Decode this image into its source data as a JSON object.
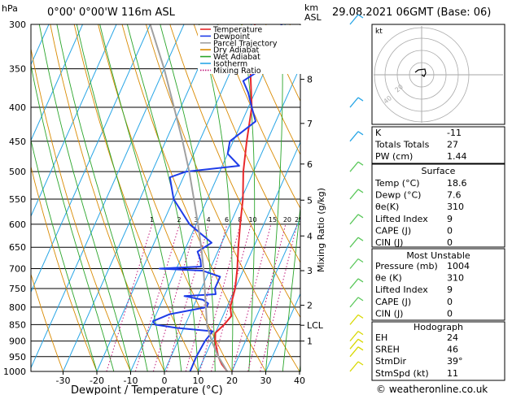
{
  "header": {
    "hpa_unit": "hPa",
    "location": "0°00' 0°00'W 116m ASL",
    "km_unit": "km",
    "asl_unit": "ASL",
    "datetime": "29.08.2021 06GMT (Base: 06)"
  },
  "legend": [
    {
      "label": "Temperature",
      "color": "#e8282b",
      "style": "solid"
    },
    {
      "label": "Dewpoint",
      "color": "#1f3de8",
      "style": "solid"
    },
    {
      "label": "Parcel Trajectory",
      "color": "#a0a0a0",
      "style": "solid"
    },
    {
      "label": "Dry Adiabat",
      "color": "#d98a00",
      "style": "solid"
    },
    {
      "label": "Wet Adiabat",
      "color": "#2aa52a",
      "style": "solid"
    },
    {
      "label": "Isotherm",
      "color": "#29a6e6",
      "style": "solid"
    },
    {
      "label": "Mixing Ratio",
      "color": "#c0187a",
      "style": "dotted"
    }
  ],
  "chart_data": {
    "type": "line",
    "xlabel": "Dewpoint / Temperature (°C)",
    "ylabel": "hPa",
    "y_scale": "log",
    "xlim": [
      -35,
      40
    ],
    "ylim": [
      1000,
      300
    ],
    "x_ticks": [
      -30,
      -20,
      -10,
      0,
      10,
      20,
      30,
      40
    ],
    "pressure_levels": [
      300,
      350,
      400,
      450,
      500,
      550,
      600,
      650,
      700,
      750,
      800,
      850,
      900,
      950,
      1000
    ],
    "altitude_km": {
      "label": "km ASL",
      "ticks": [
        {
          "km": "8",
          "p": 363
        },
        {
          "km": "7",
          "p": 423
        },
        {
          "km": "6",
          "p": 487
        },
        {
          "km": "5",
          "p": 552
        },
        {
          "km": "4",
          "p": 625
        },
        {
          "km": "3",
          "p": 705
        },
        {
          "km": "2",
          "p": 795
        },
        {
          "km": "LCL",
          "p": 852
        },
        {
          "km": "1",
          "p": 900
        }
      ]
    },
    "mixing_ratio_label": "Mixing Ratio (g/kg)",
    "mixing_ratio_values": [
      "1",
      "2",
      "3",
      "4",
      "6",
      "8",
      "10",
      "15",
      "20",
      "25"
    ],
    "series": [
      {
        "name": "Temperature",
        "color": "#e8282b",
        "points": [
          [
            1000,
            18.6
          ],
          [
            975,
            16
          ],
          [
            950,
            14
          ],
          [
            925,
            12.5
          ],
          [
            900,
            11
          ],
          [
            875,
            10
          ],
          [
            850,
            11.5
          ],
          [
            825,
            12.5
          ],
          [
            800,
            11
          ],
          [
            750,
            10
          ],
          [
            700,
            8
          ],
          [
            650,
            5.5
          ],
          [
            600,
            3
          ],
          [
            550,
            0.5
          ],
          [
            500,
            -3
          ],
          [
            450,
            -6
          ],
          [
            400,
            -9
          ],
          [
            350,
            -14.5
          ],
          [
            320,
            -17
          ],
          [
            300,
            -19
          ]
        ]
      },
      {
        "name": "Dewpoint",
        "color": "#1f3de8",
        "points": [
          [
            1000,
            7.6
          ],
          [
            950,
            7.5
          ],
          [
            900,
            8
          ],
          [
            870,
            9
          ],
          [
            860,
            -2
          ],
          [
            850,
            -9
          ],
          [
            840,
            -10
          ],
          [
            820,
            -6
          ],
          [
            800,
            4
          ],
          [
            790,
            4
          ],
          [
            780,
            2
          ],
          [
            770,
            -4
          ],
          [
            765,
            5
          ],
          [
            750,
            4
          ],
          [
            720,
            4
          ],
          [
            705,
            -2
          ],
          [
            700,
            -15
          ],
          [
            695,
            -3
          ],
          [
            680,
            -4
          ],
          [
            660,
            -6
          ],
          [
            640,
            -3
          ],
          [
            600,
            -12
          ],
          [
            550,
            -20
          ],
          [
            510,
            -24
          ],
          [
            500,
            -20
          ],
          [
            490,
            -5
          ],
          [
            470,
            -10
          ],
          [
            450,
            -11
          ],
          [
            420,
            -6
          ],
          [
            400,
            -9
          ],
          [
            380,
            -12
          ],
          [
            365,
            -15
          ],
          [
            350,
            -11
          ],
          [
            335,
            -9
          ],
          [
            330,
            -12
          ],
          [
            310,
            -12
          ],
          [
            300,
            -11
          ]
        ]
      },
      {
        "name": "Parcel Trajectory",
        "color": "#a0a0a0",
        "points": [
          [
            1000,
            18.6
          ],
          [
            950,
            14
          ],
          [
            900,
            10
          ],
          [
            852,
            6.5
          ],
          [
            800,
            3.8
          ],
          [
            750,
            1
          ],
          [
            700,
            -2
          ],
          [
            650,
            -5.5
          ],
          [
            600,
            -9.5
          ],
          [
            550,
            -14
          ],
          [
            500,
            -19
          ],
          [
            450,
            -25
          ],
          [
            400,
            -32
          ],
          [
            350,
            -40
          ],
          [
            300,
            -50
          ]
        ]
      }
    ]
  },
  "hodograph": {
    "label": "kt",
    "ring_labels": [
      "20",
      "40"
    ],
    "points": [
      [
        0,
        0
      ],
      [
        3,
        2
      ],
      [
        5,
        -2
      ],
      [
        4,
        -7
      ],
      [
        -4,
        -6
      ],
      [
        -8,
        -3
      ]
    ]
  },
  "indices": {
    "top": [
      {
        "label": "K",
        "value": "-11"
      },
      {
        "label": "Totals Totals",
        "value": "27"
      },
      {
        "label": "PW (cm)",
        "value": "1.44"
      }
    ],
    "surface": {
      "title": "Surface",
      "rows": [
        {
          "label": "Temp (°C)",
          "value": "18.6"
        },
        {
          "label": "Dewp (°C)",
          "value": "7.6"
        },
        {
          "label": "θe(K)",
          "value": "310"
        },
        {
          "label": "Lifted Index",
          "value": "9"
        },
        {
          "label": "CAPE (J)",
          "value": "0"
        },
        {
          "label": "CIN (J)",
          "value": "0"
        }
      ]
    },
    "most_unstable": {
      "title": "Most Unstable",
      "rows": [
        {
          "label": "Pressure (mb)",
          "value": "1004"
        },
        {
          "label": "θe (K)",
          "value": "310"
        },
        {
          "label": "Lifted Index",
          "value": "9"
        },
        {
          "label": "CAPE (J)",
          "value": "0"
        },
        {
          "label": "CIN (J)",
          "value": "0"
        }
      ]
    },
    "hodograph_box": {
      "title": "Hodograph",
      "rows": [
        {
          "label": "EH",
          "value": "24"
        },
        {
          "label": "SREH",
          "value": "46"
        },
        {
          "label": "StmDir",
          "value": "39°"
        },
        {
          "label": "StmSpd (kt)",
          "value": "11"
        }
      ]
    }
  },
  "footer": "© weatheronline.co.uk",
  "colors": {
    "temperature": "#e8282b",
    "dewpoint": "#1f3de8",
    "parcel": "#a0a0a0",
    "dry": "#d98a00",
    "wet": "#2aa52a",
    "isotherm": "#29a6e6",
    "mixing": "#c0187a",
    "barb_cool": "#29a6e6",
    "barb_mid": "#5cc85c",
    "barb_low": "#d8d800"
  }
}
